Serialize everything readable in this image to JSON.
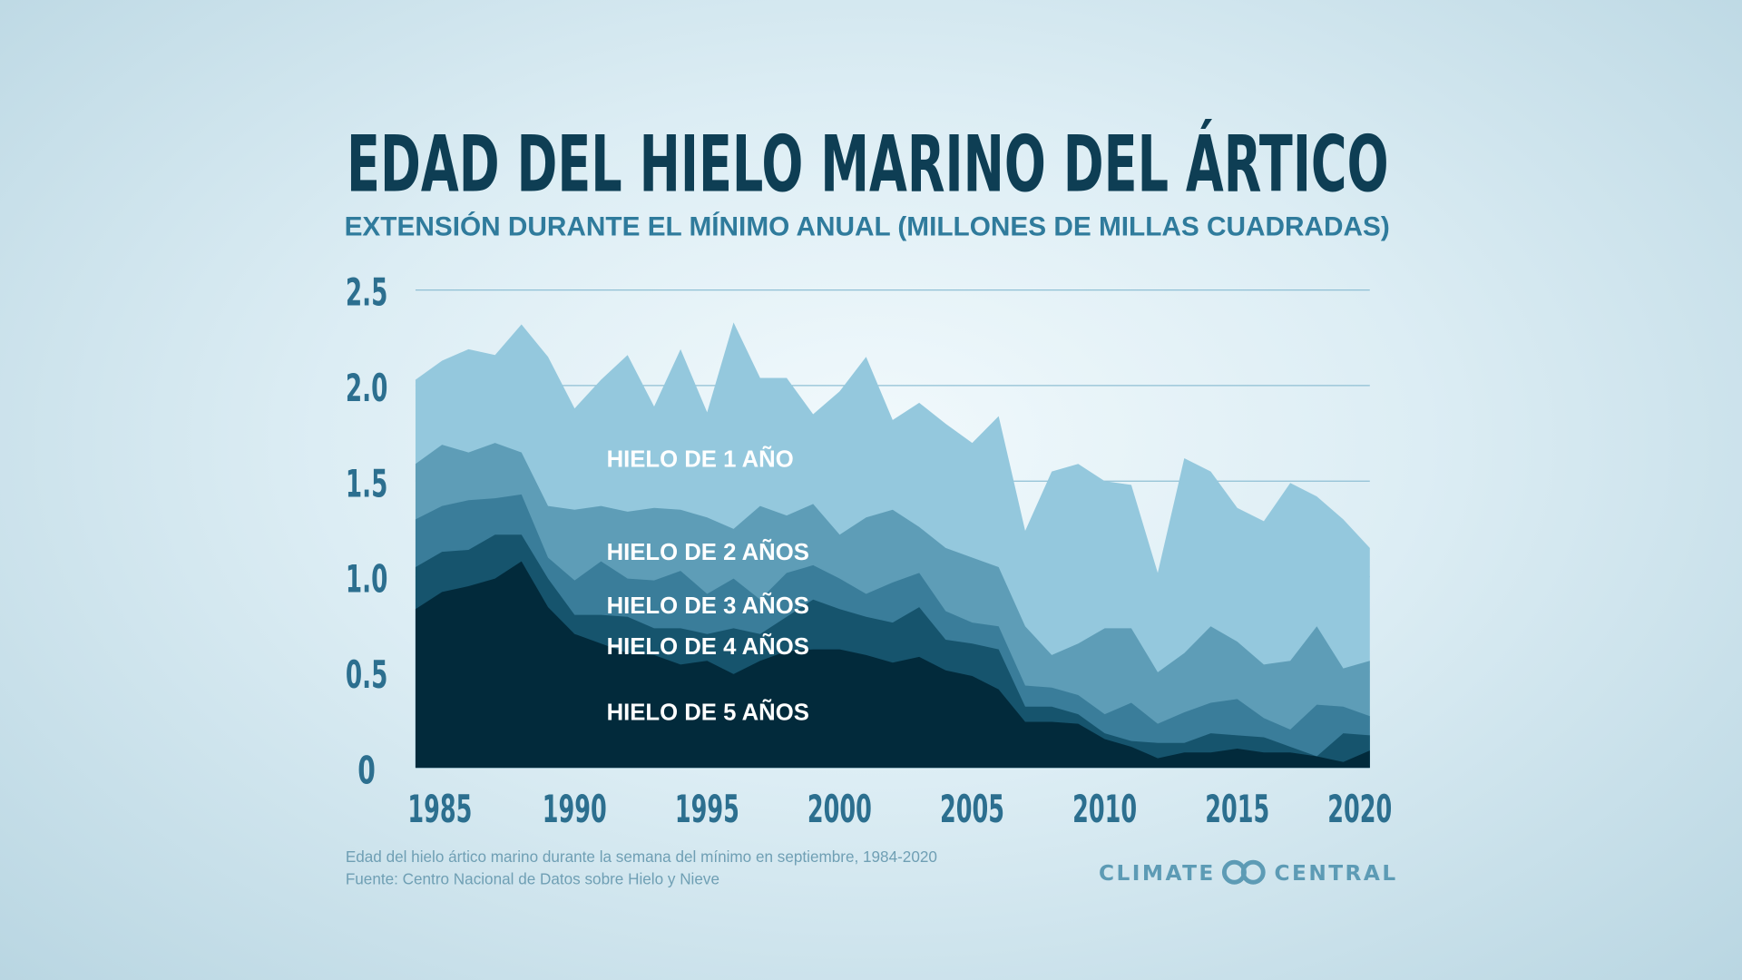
{
  "colors": {
    "title": "#0e3e54",
    "subtitle": "#2f7b9c",
    "axis": "#2c6f8f",
    "grid": "#8fbfd4"
  },
  "chart_data": {
    "type": "area",
    "stacked": true,
    "title": "EDAD DEL HIELO MARINO DEL ÁRTICO",
    "subtitle": "EXTENSIÓN DURANTE EL MÍNIMO ANUAL (MILLONES DE MILLAS CUADRADAS)",
    "xlabel": "",
    "ylabel": "",
    "xlim": [
      1984,
      2020
    ],
    "ylim": [
      0,
      2.5
    ],
    "grid": true,
    "x_ticks": [
      "1985",
      "1990",
      "1995",
      "2000",
      "2005",
      "2010",
      "2015",
      "2020"
    ],
    "y_ticks": [
      "0",
      "0.5",
      "1.0",
      "1.5",
      "2.0",
      "2.5"
    ],
    "x": [
      1984,
      1985,
      1986,
      1987,
      1988,
      1989,
      1990,
      1991,
      1992,
      1993,
      1994,
      1995,
      1996,
      1997,
      1998,
      1999,
      2000,
      2001,
      2002,
      2003,
      2004,
      2005,
      2006,
      2007,
      2008,
      2009,
      2010,
      2011,
      2012,
      2013,
      2014,
      2015,
      2016,
      2017,
      2018,
      2019,
      2020
    ],
    "series": [
      {
        "name": "HIELO DE 5 AÑOS",
        "color": "#022a3b",
        "values": [
          0.83,
          0.92,
          0.95,
          0.99,
          1.08,
          0.84,
          0.7,
          0.65,
          0.6,
          0.59,
          0.54,
          0.56,
          0.49,
          0.56,
          0.61,
          0.62,
          0.62,
          0.59,
          0.55,
          0.58,
          0.51,
          0.48,
          0.41,
          0.24,
          0.24,
          0.23,
          0.15,
          0.11,
          0.05,
          0.08,
          0.08,
          0.1,
          0.08,
          0.08,
          0.06,
          0.03,
          0.09
        ]
      },
      {
        "name": "HIELO DE 4 AÑOS",
        "color": "#16546d",
        "values": [
          0.22,
          0.21,
          0.19,
          0.23,
          0.14,
          0.15,
          0.1,
          0.15,
          0.19,
          0.14,
          0.19,
          0.14,
          0.24,
          0.14,
          0.18,
          0.26,
          0.21,
          0.2,
          0.21,
          0.26,
          0.16,
          0.17,
          0.21,
          0.08,
          0.08,
          0.05,
          0.03,
          0.03,
          0.08,
          0.05,
          0.1,
          0.07,
          0.08,
          0.03,
          0.0,
          0.15,
          0.08
        ]
      },
      {
        "name": "HIELO DE 3 AÑOS",
        "color": "#3a7d9a",
        "values": [
          0.25,
          0.24,
          0.26,
          0.19,
          0.21,
          0.11,
          0.18,
          0.28,
          0.2,
          0.25,
          0.3,
          0.21,
          0.26,
          0.18,
          0.23,
          0.18,
          0.16,
          0.12,
          0.21,
          0.18,
          0.15,
          0.11,
          0.12,
          0.11,
          0.1,
          0.1,
          0.1,
          0.2,
          0.1,
          0.16,
          0.16,
          0.19,
          0.1,
          0.09,
          0.27,
          0.14,
          0.1
        ]
      },
      {
        "name": "HIELO DE 2 AÑOS",
        "color": "#5e9db7",
        "values": [
          0.29,
          0.32,
          0.25,
          0.29,
          0.22,
          0.27,
          0.37,
          0.29,
          0.35,
          0.38,
          0.32,
          0.4,
          0.26,
          0.49,
          0.3,
          0.32,
          0.23,
          0.4,
          0.38,
          0.24,
          0.33,
          0.34,
          0.31,
          0.31,
          0.17,
          0.27,
          0.45,
          0.39,
          0.27,
          0.31,
          0.4,
          0.3,
          0.28,
          0.36,
          0.41,
          0.2,
          0.29
        ]
      },
      {
        "name": "HIELO DE 1 AÑO",
        "color": "#94c8dd",
        "values": [
          0.44,
          0.44,
          0.54,
          0.46,
          0.67,
          0.78,
          0.53,
          0.66,
          0.82,
          0.53,
          0.84,
          0.55,
          1.08,
          0.67,
          0.72,
          0.47,
          0.75,
          0.84,
          0.47,
          0.65,
          0.65,
          0.6,
          0.79,
          0.5,
          0.96,
          0.94,
          0.77,
          0.75,
          0.52,
          1.02,
          0.81,
          0.7,
          0.75,
          0.93,
          0.68,
          0.78,
          0.59
        ]
      }
    ]
  },
  "footer": {
    "note": "Edad del hielo ártico marino durante la semana del mínimo en septiembre, 1984-2020",
    "source": "Fuente: Centro Nacional de Datos sobre Hielo y Nieve",
    "brand_left": "CLIMATE",
    "brand_right": "CENTRAL",
    "brand_icon": "infinity-rings-logo"
  }
}
